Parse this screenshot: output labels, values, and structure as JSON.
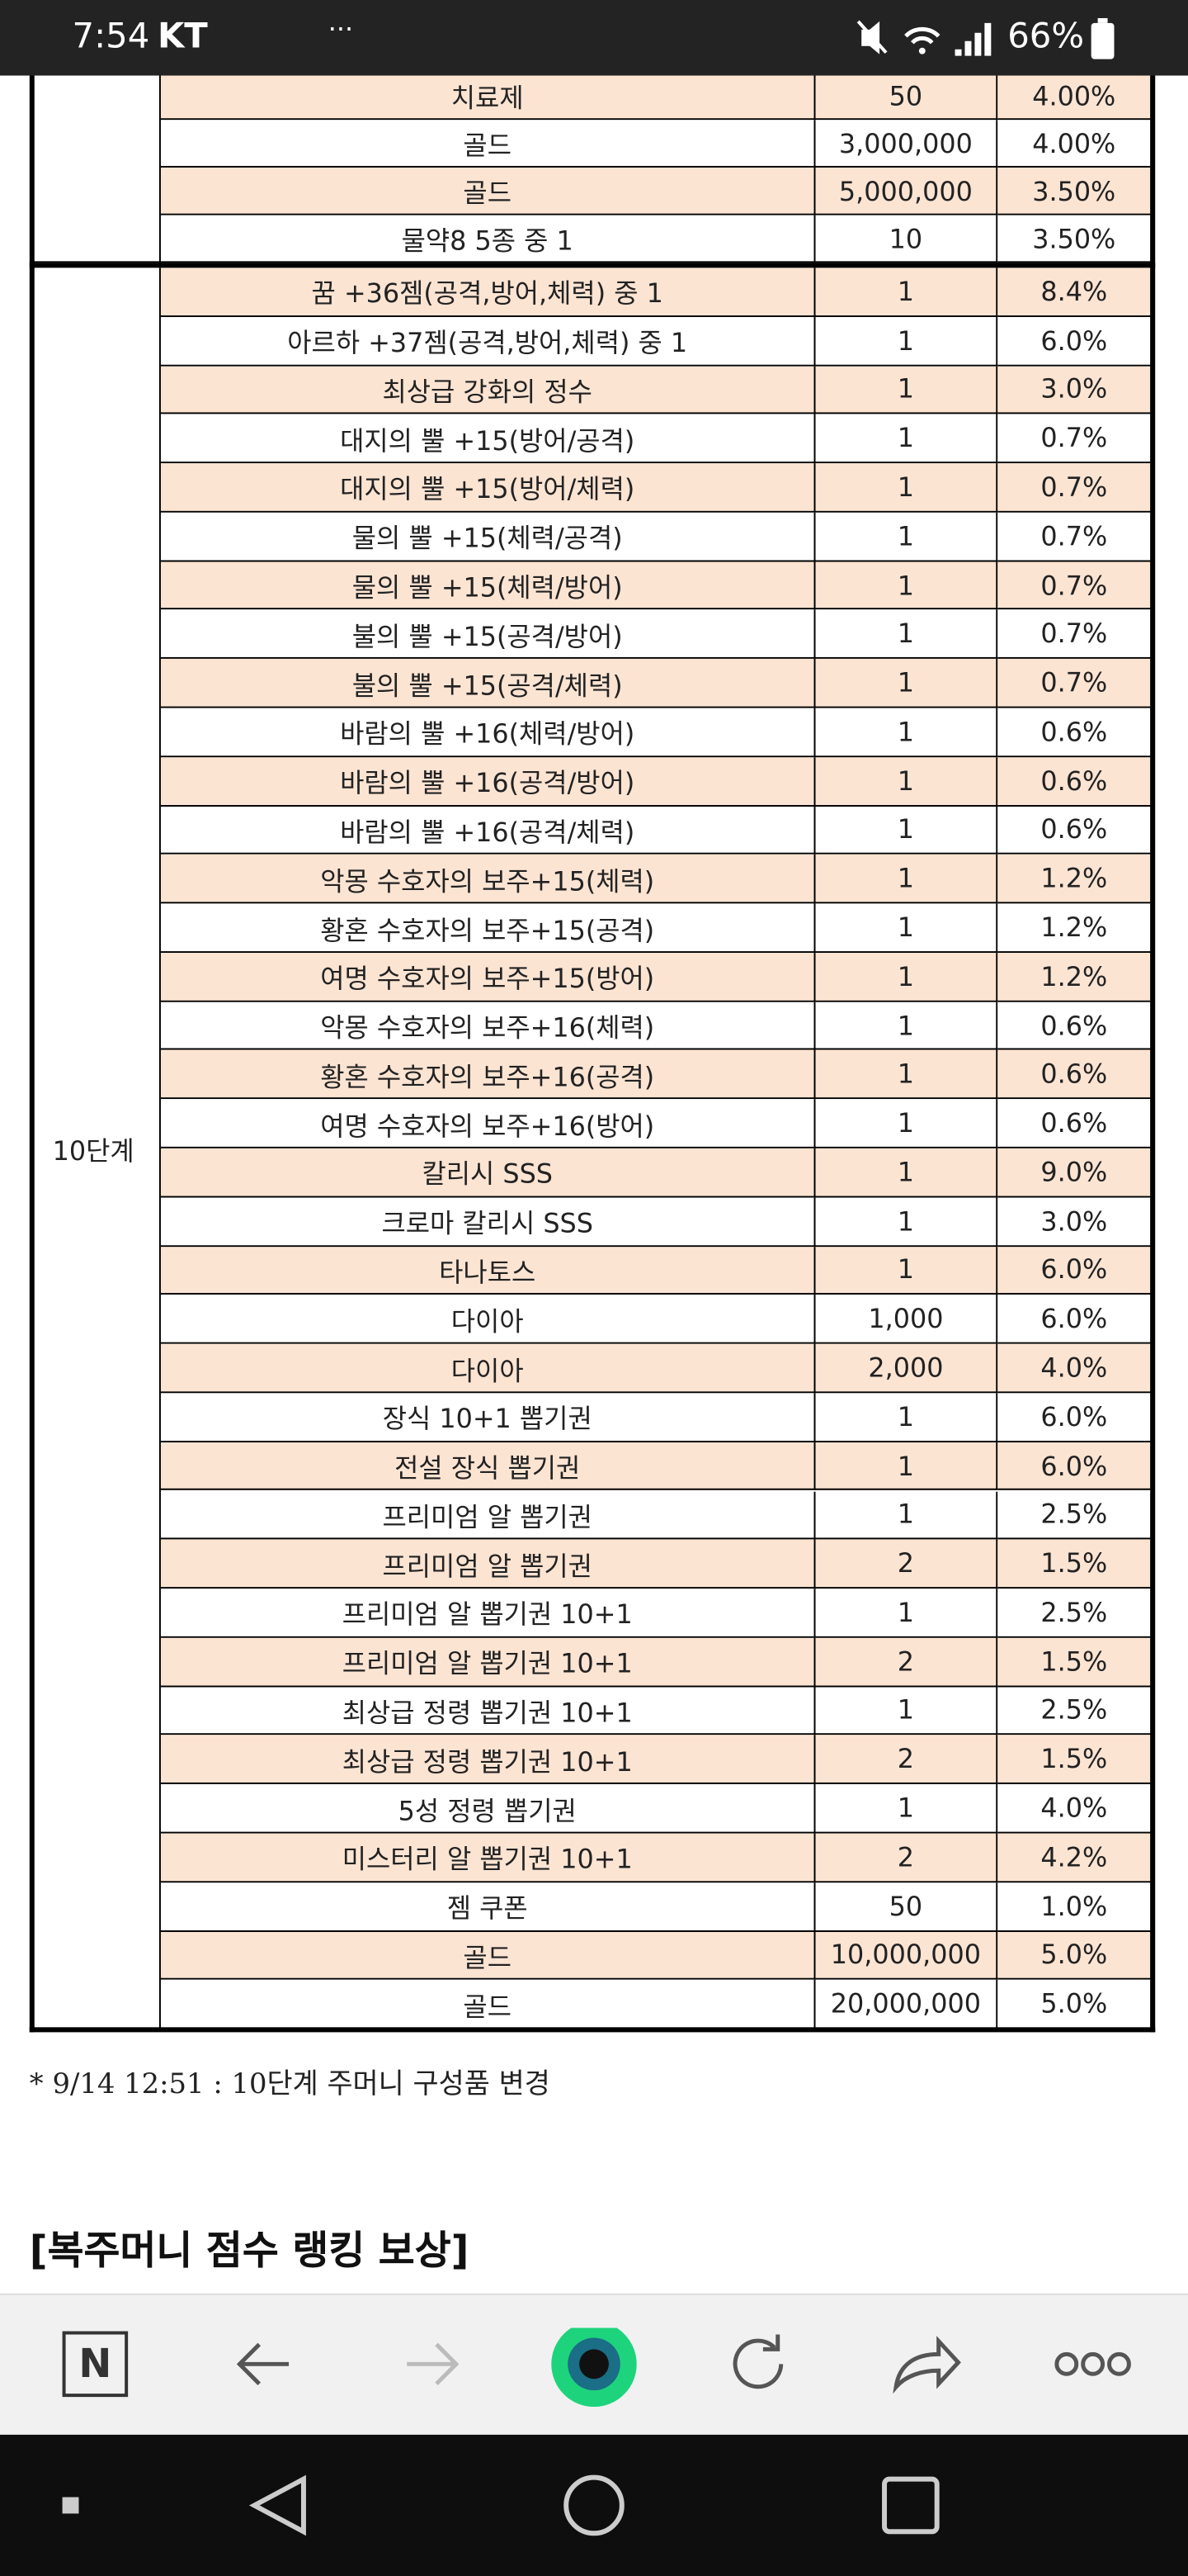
{
  "status_bar": {
    "time": "7:54",
    "carrier": "KT",
    "more": "···",
    "battery": "66%"
  },
  "table": {
    "groups": [
      {
        "rows": [
          [
            "치료제",
            "50",
            "4.00%"
          ],
          [
            "골드",
            "3,000,000",
            "4.00%"
          ],
          [
            "골드",
            "5,000,000",
            "3.50%"
          ],
          [
            "물약8 5종 중 1",
            "10",
            "3.50%"
          ]
        ]
      },
      {
        "label": "10단계",
        "rows": [
          [
            "꿈 +36젬(공격,방어,체력) 중 1",
            "1",
            "8.4%"
          ],
          [
            "아르하 +37젬(공격,방어,체력) 중 1",
            "1",
            "6.0%"
          ],
          [
            "최상급 강화의 정수",
            "1",
            "3.0%"
          ],
          [
            "대지의 뿔 +15(방어/공격)",
            "1",
            "0.7%"
          ],
          [
            "대지의 뿔 +15(방어/체력)",
            "1",
            "0.7%"
          ],
          [
            "물의 뿔 +15(체력/공격)",
            "1",
            "0.7%"
          ],
          [
            "물의 뿔 +15(체력/방어)",
            "1",
            "0.7%"
          ],
          [
            "불의 뿔 +15(공격/방어)",
            "1",
            "0.7%"
          ],
          [
            "불의 뿔 +15(공격/체력)",
            "1",
            "0.7%"
          ],
          [
            "바람의 뿔 +16(체력/방어)",
            "1",
            "0.6%"
          ],
          [
            "바람의 뿔 +16(공격/방어)",
            "1",
            "0.6%"
          ],
          [
            "바람의 뿔 +16(공격/체력)",
            "1",
            "0.6%"
          ],
          [
            "악몽 수호자의 보주+15(체력)",
            "1",
            "1.2%"
          ],
          [
            "황혼 수호자의 보주+15(공격)",
            "1",
            "1.2%"
          ],
          [
            "여명 수호자의 보주+15(방어)",
            "1",
            "1.2%"
          ],
          [
            "악몽 수호자의 보주+16(체력)",
            "1",
            "0.6%"
          ],
          [
            "황혼 수호자의 보주+16(공격)",
            "1",
            "0.6%"
          ],
          [
            "여명 수호자의 보주+16(방어)",
            "1",
            "0.6%"
          ],
          [
            "칼리시 SSS",
            "1",
            "9.0%"
          ],
          [
            "크로마 칼리시 SSS",
            "1",
            "3.0%"
          ],
          [
            "타나토스",
            "1",
            "6.0%"
          ],
          [
            "다이아",
            "1,000",
            "6.0%"
          ],
          [
            "다이아",
            "2,000",
            "4.0%"
          ],
          [
            "장식 10+1 뽑기권",
            "1",
            "6.0%"
          ],
          [
            "전설 장식 뽑기권",
            "1",
            "6.0%"
          ],
          [
            "프리미엄 알 뽑기권",
            "1",
            "2.5%"
          ],
          [
            "프리미엄 알 뽑기권",
            "2",
            "1.5%"
          ],
          [
            "프리미엄 알 뽑기권 10+1",
            "1",
            "2.5%"
          ],
          [
            "프리미엄 알 뽑기권 10+1",
            "2",
            "1.5%"
          ],
          [
            "최상급 정령 뽑기권 10+1",
            "1",
            "2.5%"
          ],
          [
            "최상급 정령 뽑기권 10+1",
            "2",
            "1.5%"
          ],
          [
            "5성 정령 뽑기권",
            "1",
            "4.0%"
          ],
          [
            "미스터리 알 뽑기권 10+1",
            "2",
            "4.2%"
          ],
          [
            "젬 쿠폰",
            "50",
            "1.0%"
          ],
          [
            "골드",
            "10,000,000",
            "5.0%"
          ],
          [
            "골드",
            "20,000,000",
            "5.0%"
          ]
        ]
      }
    ]
  },
  "note": "* 9/14 12:51 : 10단계 주머니 구성품 변경",
  "heading": "[복주머니 점수 랭킹 보상]",
  "toolbar": {
    "n_button": "N"
  }
}
